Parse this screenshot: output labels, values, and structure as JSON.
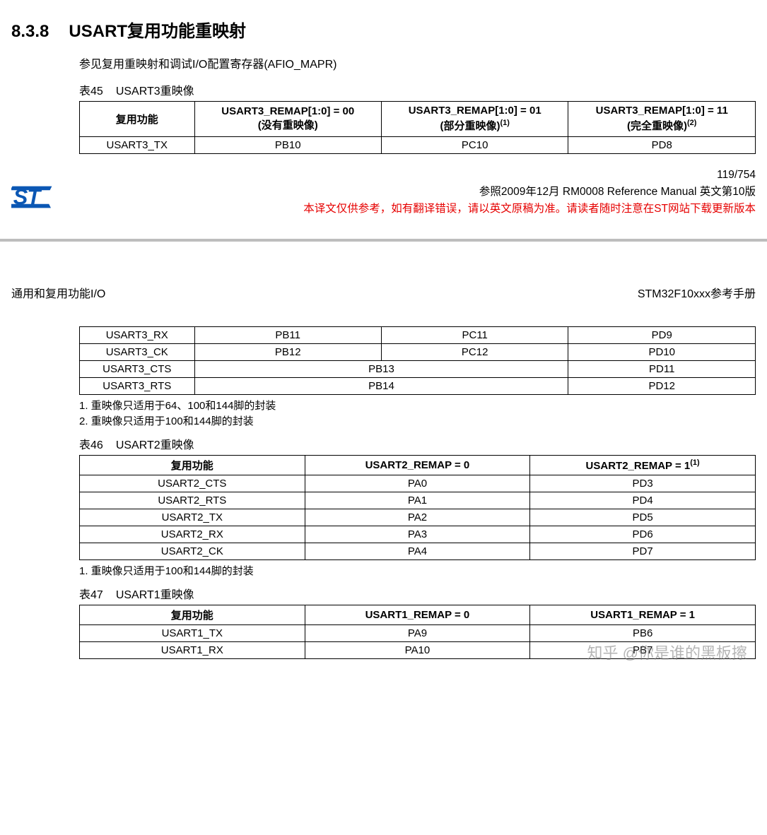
{
  "section": {
    "number": "8.3.8",
    "title": "USART复用功能重映射"
  },
  "intro": "参见复用重映射和调试I/O配置寄存器(AFIO_MAPR)",
  "table45": {
    "caption_num": "表45",
    "caption_title": "USART3重映像",
    "headers": {
      "c0": "复用功能",
      "c1a": "USART3_REMAP[1:0] = 00",
      "c1b": "(没有重映像)",
      "c2a": "USART3_REMAP[1:0] = 01",
      "c2b": "(部分重映像)",
      "c2sup": "(1)",
      "c3a": "USART3_REMAP[1:0] = 11",
      "c3b": "(完全重映像)",
      "c3sup": "(2)"
    },
    "row1": {
      "c0": "USART3_TX",
      "c1": "PB10",
      "c2": "PC10",
      "c3": "PD8"
    }
  },
  "footer": {
    "pagenum": "119/754",
    "line2": "参照2009年12月 RM0008 Reference Manual  英文第10版",
    "line3": "本译文仅供参考，如有翻译错误，请以英文原稿为准。请读者随时注意在ST网站下载更新版本"
  },
  "page2header": {
    "left": "通用和复用功能I/O",
    "right": "STM32F10xxx参考手册"
  },
  "table45b": {
    "rows": [
      {
        "c0": "USART3_RX",
        "c1": "PB11",
        "c2": "PC11",
        "c3": "PD9"
      },
      {
        "c0": "USART3_CK",
        "c1": "PB12",
        "c2": "PC12",
        "c3": "PD10"
      },
      {
        "c0": "USART3_CTS",
        "c12": "PB13",
        "c3": "PD11"
      },
      {
        "c0": "USART3_RTS",
        "c12": "PB14",
        "c3": "PD12"
      }
    ],
    "notes": [
      "1.  重映像只适用于64、100和144脚的封装",
      "2.  重映像只适用于100和144脚的封装"
    ]
  },
  "table46": {
    "caption_num": "表46",
    "caption_title": "USART2重映像",
    "headers": {
      "c0": "复用功能",
      "c1": "USART2_REMAP = 0",
      "c2": "USART2_REMAP = 1",
      "c2sup": "(1)"
    },
    "rows": [
      {
        "c0": "USART2_CTS",
        "c1": "PA0",
        "c2": "PD3"
      },
      {
        "c0": "USART2_RTS",
        "c1": "PA1",
        "c2": "PD4"
      },
      {
        "c0": "USART2_TX",
        "c1": "PA2",
        "c2": "PD5"
      },
      {
        "c0": "USART2_RX",
        "c1": "PA3",
        "c2": "PD6"
      },
      {
        "c0": "USART2_CK",
        "c1": "PA4",
        "c2": "PD7"
      }
    ],
    "notes": [
      "1.  重映像只适用于100和144脚的封装"
    ]
  },
  "table47": {
    "caption_num": "表47",
    "caption_title": "USART1重映像",
    "headers": {
      "c0": "复用功能",
      "c1": "USART1_REMAP = 0",
      "c2": "USART1_REMAP = 1"
    },
    "rows": [
      {
        "c0": "USART1_TX",
        "c1": "PA9",
        "c2": "PB6"
      },
      {
        "c0": "USART1_RX",
        "c1": "PA10",
        "c2": "PB7"
      }
    ]
  },
  "watermark": "知乎 @你是谁的黑板擦",
  "colors": {
    "red": "#e60000",
    "st_blue": "#0b57b4",
    "st_blue_dark": "#083a7a",
    "hr": "#bdbdbd"
  }
}
